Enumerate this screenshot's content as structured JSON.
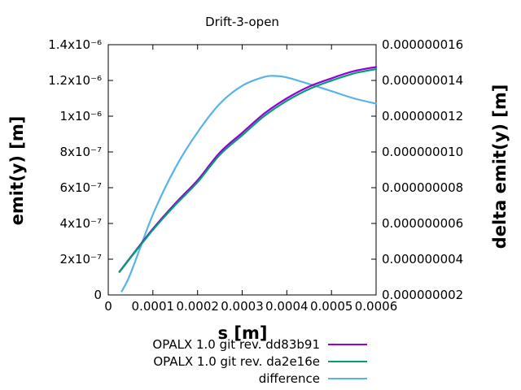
{
  "chart_data": {
    "type": "line",
    "title": "Drift-3-open",
    "xlabel": "s [m]",
    "ylabel_left": "emit(y) [m]",
    "ylabel_right": "delta emit(y) [m]",
    "grid": false,
    "legend_position": "below-plot, right-aligned labels with line samples",
    "x_range": [
      0,
      0.0006
    ],
    "y_left_range": [
      0,
      1.4e-06
    ],
    "y_right_range": [
      2e-09,
      1.6e-08
    ],
    "x_ticks": {
      "values": [
        0,
        0.0001,
        0.0002,
        0.0003,
        0.0004,
        0.0005,
        0.0006
      ],
      "labels": [
        "0",
        "0.0001",
        "0.0002",
        "0.0003",
        "0.0004",
        "0.0005",
        "0.0006"
      ]
    },
    "y_left_ticks": {
      "values": [
        0,
        2e-07,
        4e-07,
        6e-07,
        8e-07,
        1e-06,
        1.2e-06,
        1.4e-06
      ],
      "labels": [
        "0",
        "2x10⁻⁷",
        "4x10⁻⁷",
        "6x10⁻⁷",
        "8x10⁻⁷",
        "1x10⁻⁶",
        "1.2x10⁻⁶",
        "1.4x10⁻⁶"
      ]
    },
    "y_right_ticks": {
      "values": [
        2e-09,
        4e-09,
        6e-09,
        8e-09,
        1e-08,
        1.2e-08,
        1.4e-08,
        1.6e-08
      ],
      "labels": [
        "0.000000002",
        "0.000000004",
        "0.000000006",
        "0.000000008",
        "0.000000010",
        "0.000000012",
        "0.000000014",
        "0.000000016"
      ]
    },
    "series": [
      {
        "name": "OPALX 1.0 git rev. dd83b91",
        "color": "#9400d3",
        "axis": "left",
        "x": [
          2.5e-05,
          5e-05,
          0.0001,
          0.00015,
          0.0002,
          0.00025,
          0.0003,
          0.00035,
          0.0004,
          0.00045,
          0.0005,
          0.00055,
          0.0006
        ],
        "y": [
          1.3e-07,
          2.11e-07,
          3.7e-07,
          5.12e-07,
          6.42e-07,
          7.97e-07,
          9.07e-07,
          1.016e-06,
          1.1e-06,
          1.166e-06,
          1.212e-06,
          1.252e-06,
          1.275e-06
        ]
      },
      {
        "name": "OPALX 1.0 git rev. da2e16e",
        "color": "#009e73",
        "axis": "left",
        "x": [
          2.5e-05,
          5e-05,
          0.0001,
          0.00015,
          0.0002,
          0.00025,
          0.0003,
          0.00035,
          0.0004,
          0.00045,
          0.0005,
          0.00055,
          0.0006
        ],
        "y": [
          1.28e-07,
          2.08e-07,
          3.64e-07,
          5.03e-07,
          6.31e-07,
          7.84e-07,
          8.93e-07,
          1.002e-06,
          1.086e-06,
          1.152e-06,
          1.199e-06,
          1.239e-06,
          1.263e-06
        ]
      },
      {
        "name": "difference",
        "color": "#56b4e9",
        "axis": "right",
        "x": [
          3e-05,
          5e-05,
          0.0001,
          0.00015,
          0.0002,
          0.00025,
          0.0003,
          0.00035,
          0.000375,
          0.0004,
          0.00045,
          0.0005,
          0.00055,
          0.0006
        ],
        "y": [
          2.2e-09,
          3.2e-09,
          6.5e-09,
          9.1e-09,
          1.11e-08,
          1.27e-08,
          1.37e-08,
          1.42e-08,
          1.425e-08,
          1.417e-08,
          1.38e-08,
          1.34e-08,
          1.3e-08,
          1.27e-08
        ]
      }
    ]
  }
}
